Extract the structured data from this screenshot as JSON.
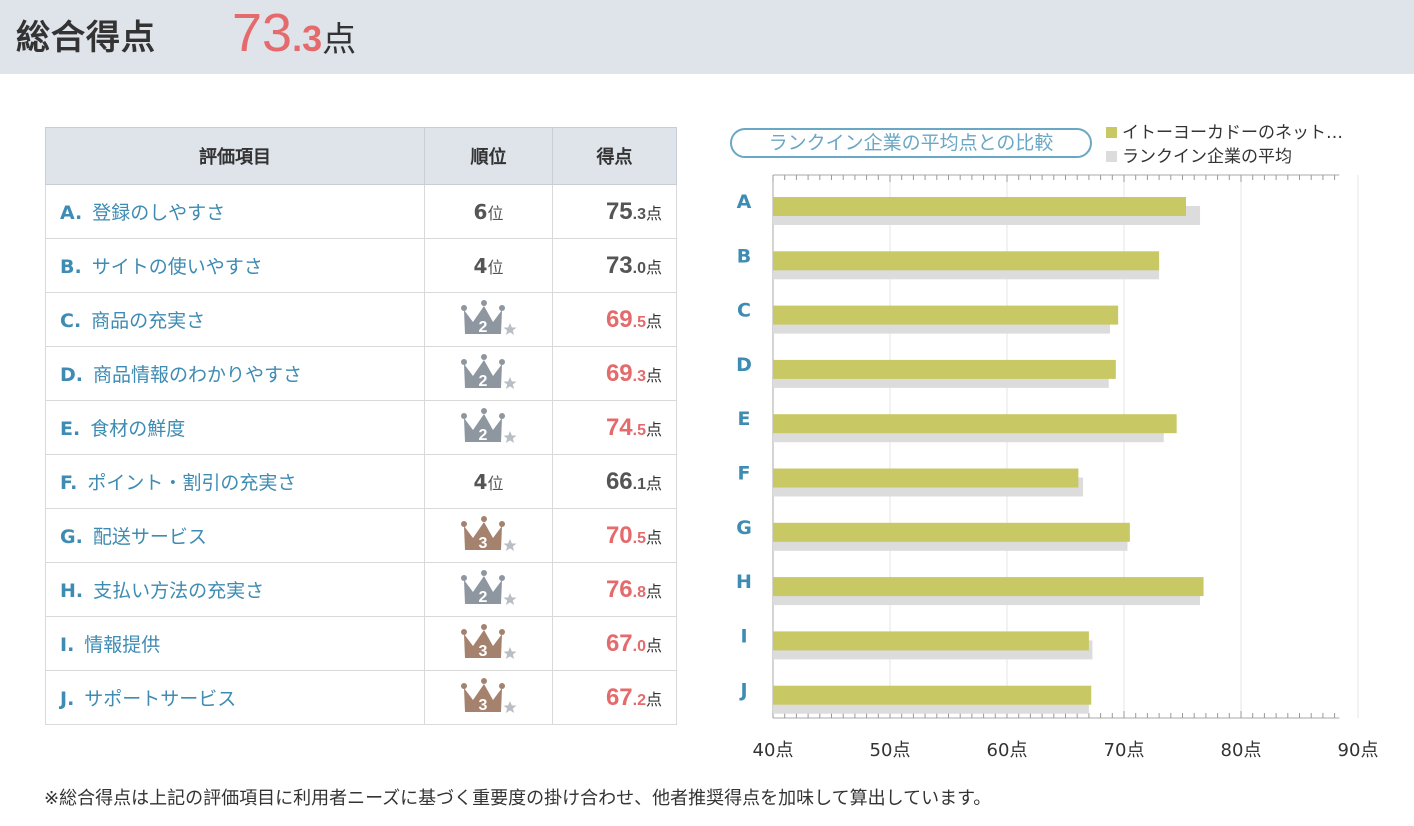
{
  "header": {
    "title": "総合得点",
    "score_int": "73",
    "score_dec": ".3",
    "score_unit": "点"
  },
  "table": {
    "headers": [
      "評価項目",
      "順位",
      "得点"
    ],
    "rows": [
      {
        "letter": "A.",
        "label": "登録のしやすさ",
        "rank_type": "text",
        "rank_num": "6",
        "rank_unit": "位",
        "score_int": "75",
        "score_dec": ".3",
        "score_unit": "点",
        "score_color": "gray"
      },
      {
        "letter": "B.",
        "label": "サイトの使いやすさ",
        "rank_type": "text",
        "rank_num": "4",
        "rank_unit": "位",
        "score_int": "73",
        "score_dec": ".0",
        "score_unit": "点",
        "score_color": "gray"
      },
      {
        "letter": "C.",
        "label": "商品の充実さ",
        "rank_type": "crown",
        "rank_num": "2",
        "score_int": "69",
        "score_dec": ".5",
        "score_unit": "点",
        "score_color": "red"
      },
      {
        "letter": "D.",
        "label": "商品情報のわかりやすさ",
        "rank_type": "crown",
        "rank_num": "2",
        "score_int": "69",
        "score_dec": ".3",
        "score_unit": "点",
        "score_color": "red"
      },
      {
        "letter": "E.",
        "label": "食材の鮮度",
        "rank_type": "crown",
        "rank_num": "2",
        "score_int": "74",
        "score_dec": ".5",
        "score_unit": "点",
        "score_color": "red"
      },
      {
        "letter": "F.",
        "label": "ポイント・割引の充実さ",
        "rank_type": "text",
        "rank_num": "4",
        "rank_unit": "位",
        "score_int": "66",
        "score_dec": ".1",
        "score_unit": "点",
        "score_color": "gray"
      },
      {
        "letter": "G.",
        "label": "配送サービス",
        "rank_type": "crown",
        "rank_num": "3",
        "score_int": "70",
        "score_dec": ".5",
        "score_unit": "点",
        "score_color": "red"
      },
      {
        "letter": "H.",
        "label": "支払い方法の充実さ",
        "rank_type": "crown",
        "rank_num": "2",
        "score_int": "76",
        "score_dec": ".8",
        "score_unit": "点",
        "score_color": "red"
      },
      {
        "letter": "I.",
        "label": "情報提供",
        "rank_type": "crown",
        "rank_num": "3",
        "score_int": "67",
        "score_dec": ".0",
        "score_unit": "点",
        "score_color": "red"
      },
      {
        "letter": "J.",
        "label": "サポートサービス",
        "rank_type": "crown",
        "rank_num": "3",
        "score_int": "67",
        "score_dec": ".2",
        "score_unit": "点",
        "score_color": "red"
      }
    ]
  },
  "crown_colors": {
    "2": "#8e96a0",
    "3": "#a5826e",
    "star": "#b9bec5"
  },
  "chart_title": "ランクイン企業の平均点との比較",
  "chart_data": {
    "type": "bar",
    "orientation": "horizontal",
    "categories": [
      "A",
      "B",
      "C",
      "D",
      "E",
      "F",
      "G",
      "H",
      "I",
      "J"
    ],
    "series": [
      {
        "name": "イトーヨーカドーのネット…",
        "color": "#c8c964",
        "values": [
          75.3,
          73.0,
          69.5,
          69.3,
          74.5,
          66.1,
          70.5,
          76.8,
          67.0,
          67.2
        ]
      },
      {
        "name": "ランクイン企業の平均",
        "color": "#dcdcdc",
        "values": [
          76.5,
          73.0,
          68.8,
          68.7,
          73.4,
          66.5,
          70.3,
          76.5,
          67.3,
          67.0
        ]
      }
    ],
    "xlim": [
      40,
      90
    ],
    "ticks": [
      40,
      50,
      60,
      70,
      80,
      90
    ],
    "tick_labels": [
      "40点",
      "50点",
      "60点",
      "70点",
      "80点",
      "90点"
    ],
    "grid": true,
    "legend": "top-right"
  },
  "footnote": "※総合得点は上記の評価項目に利用者ニーズに基づく重要度の掛け合わせ、他者推奨得点を加味して算出しています。"
}
